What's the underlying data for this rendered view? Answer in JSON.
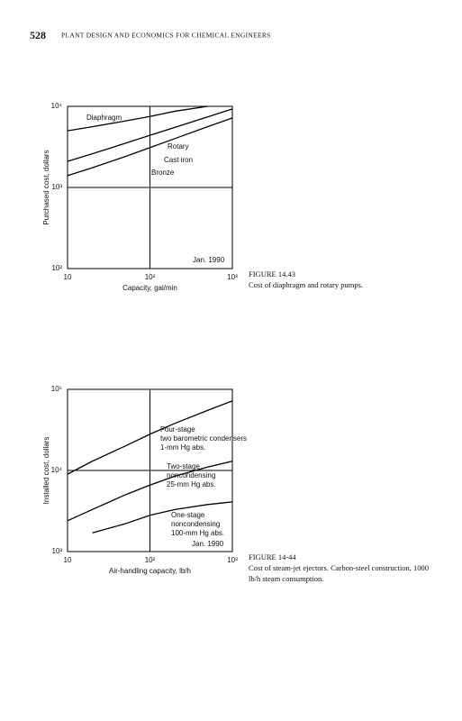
{
  "header": {
    "page_number": "528",
    "title": "PLANT DESIGN AND ECONOMICS FOR CHEMICAL ENGINEERS"
  },
  "chart_data": [
    {
      "type": "line",
      "ylabel": "Purchased cost, dollars",
      "xlabel": "Capacity, gal/min",
      "x": [
        10,
        20,
        50,
        100,
        200,
        500,
        1000
      ],
      "series": [
        {
          "name": "Diaphragm",
          "color": "#000000",
          "values": [
            5000,
            5600,
            6600,
            7500,
            8700,
            10000,
            null
          ]
        },
        {
          "name": "Cast iron",
          "color": "#000000",
          "values": [
            2100,
            2600,
            3500,
            4400,
            5500,
            7400,
            9300
          ]
        },
        {
          "name": "Bronze",
          "color": "#000000",
          "values": [
            1400,
            1750,
            2400,
            3100,
            4000,
            5600,
            7200
          ]
        }
      ],
      "annotations": [
        "Rotary",
        "Jan. 1990"
      ],
      "xlim": [
        10,
        1000
      ],
      "ylim": [
        100,
        10000
      ],
      "log_x": true,
      "log_y": true,
      "grid": true,
      "xticks": [
        10,
        {
          "value": 100,
          "label": "10²"
        },
        {
          "value": 1000,
          "label": "10³"
        }
      ],
      "yticks": [
        {
          "value": 100,
          "label": "10²"
        },
        {
          "value": 1000,
          "label": "10³"
        },
        {
          "value": 10000,
          "label": "10⁴"
        }
      ],
      "caption": {
        "label": "FIGURE 14.43",
        "text": "Cost of diaphragm and rotary pumps."
      }
    },
    {
      "type": "line",
      "ylabel": "Installed cost, dollars",
      "xlabel": "Air-handling capacity, lb/h",
      "x": [
        10,
        20,
        50,
        100,
        200,
        500,
        1000
      ],
      "series": [
        {
          "name": "Four-stage",
          "color": "#000000",
          "values": [
            9000,
            13000,
            20000,
            28000,
            38000,
            55000,
            72000
          ]
        },
        {
          "name": "Two-stage",
          "color": "#000000",
          "values": [
            2400,
            3300,
            5000,
            6600,
            8500,
            11000,
            13000
          ]
        },
        {
          "name": "One-stage",
          "color": "#000000",
          "values": [
            null,
            1700,
            2200,
            2800,
            3300,
            3800,
            4100
          ]
        }
      ],
      "annotations": [
        "two barometric condensers",
        "1-mm Hg abs.",
        "noncondensing",
        "25-mm Hg abs.",
        "noncondensing",
        "100-mm Hg abs.",
        "Jan. 1990"
      ],
      "xlim": [
        10,
        1000
      ],
      "ylim": [
        1000,
        100000
      ],
      "log_x": true,
      "log_y": true,
      "grid": true,
      "xticks": [
        10,
        {
          "value": 100,
          "label": "10²"
        },
        {
          "value": 1000,
          "label": "10³"
        }
      ],
      "yticks": [
        {
          "value": 1000,
          "label": "10³"
        },
        {
          "value": 10000,
          "label": "10⁴"
        },
        {
          "value": 100000,
          "label": "10⁵"
        }
      ],
      "caption": {
        "label": "FIGURE 14-44",
        "text": "Cost of steam-jet ejectors. Carbon-steel construction, 1000 lb/h steam consumption."
      }
    }
  ]
}
